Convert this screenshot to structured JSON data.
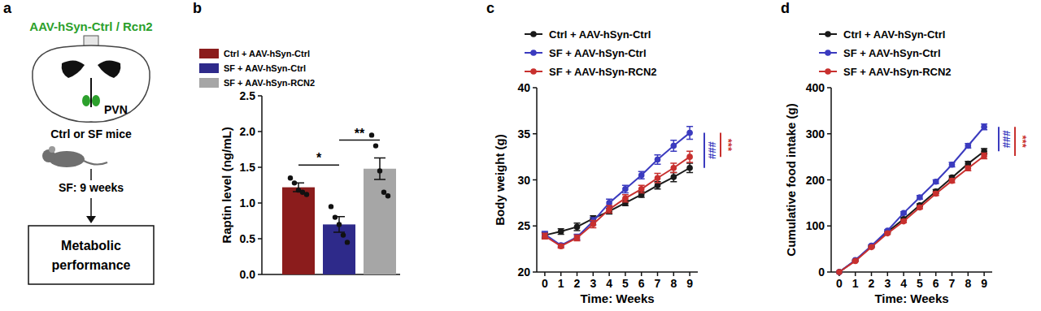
{
  "diagram": {
    "label": "a",
    "title": "AAV-hSyn-Ctrl / Rcn2",
    "region": "PVN",
    "groups": "Ctrl or SF mice",
    "treatment": "SF: 9 weeks",
    "outcome": "Metabolic performance"
  },
  "chart_data": [
    {
      "type": "bar",
      "label": "b",
      "ylabel": "Raptin level (ng/mL)",
      "categories": [
        "Ctrl + AAV-hSyn-Ctrl",
        "SF + AAV-hSyn-Ctrl",
        "SF + AAV-hSyn-RCN2"
      ],
      "values": [
        1.22,
        0.7,
        1.48
      ],
      "errors": [
        0.06,
        0.11,
        0.15
      ],
      "points": [
        [
          1.35,
          1.28,
          1.18,
          1.15,
          1.12
        ],
        [
          0.95,
          0.8,
          0.7,
          0.55,
          0.45
        ],
        [
          1.95,
          1.8,
          1.45,
          1.15,
          1.1
        ]
      ],
      "colors": [
        "#8b1c1c",
        "#2e2a8a",
        "#a6a6a6"
      ],
      "ylim": [
        0,
        2.5
      ],
      "yticks": [
        {
          "value": 0,
          "label": "0.0"
        },
        0.5,
        {
          "value": 1,
          "label": "1.0"
        },
        1.5,
        {
          "value": 2,
          "label": "2.0"
        },
        2.5
      ],
      "grid": false,
      "legend": "upper left",
      "tick_labels": "y",
      "annotations": [
        {
          "text": "*",
          "between": [
            "Ctrl + AAV-hSyn-Ctrl",
            "SF + AAV-hSyn-Ctrl"
          ]
        },
        {
          "text": "**",
          "between": [
            "SF + AAV-hSyn-Ctrl",
            "SF + AAV-hSyn-RCN2"
          ]
        }
      ]
    },
    {
      "type": "line",
      "label": "c",
      "xlabel": "Time: Weeks",
      "ylabel": "Body weight (g)",
      "x": [
        0,
        1,
        2,
        3,
        4,
        5,
        6,
        7,
        8,
        9
      ],
      "series": [
        {
          "name": "Ctrl + AAV-hSyn-Ctrl",
          "color": "#1a1a1a",
          "marker": "circle",
          "values": [
            24.0,
            24.4,
            24.9,
            25.8,
            26.6,
            27.5,
            28.4,
            29.4,
            30.3,
            31.3
          ],
          "errors": [
            0.3,
            0.3,
            0.4,
            0.3,
            0.3,
            0.3,
            0.3,
            0.4,
            0.5,
            0.5
          ]
        },
        {
          "name": "SF + AAV-hSyn-Ctrl",
          "color": "#3b3bbf",
          "marker": "circle",
          "values": [
            24.1,
            22.9,
            23.8,
            25.5,
            27.5,
            29.0,
            30.5,
            32.2,
            33.7,
            35.1
          ],
          "errors": [
            0.3,
            0.2,
            0.3,
            0.4,
            0.4,
            0.4,
            0.4,
            0.5,
            0.6,
            0.7
          ]
        },
        {
          "name": "SF + AAV-hSyn-RCN2",
          "color": "#c8302e",
          "marker": "circle",
          "values": [
            23.9,
            22.8,
            23.7,
            25.2,
            26.8,
            28.0,
            29.0,
            30.2,
            31.3,
            32.5
          ],
          "errors": [
            0.3,
            0.2,
            0.3,
            0.4,
            0.4,
            0.4,
            0.4,
            0.5,
            0.5,
            0.6
          ]
        }
      ],
      "xlim": [
        -0.5,
        9.5
      ],
      "xticks": [
        0,
        1,
        2,
        3,
        4,
        5,
        6,
        7,
        8,
        9
      ],
      "ylim": [
        20,
        40
      ],
      "yticks": [
        20,
        25,
        30,
        35,
        40
      ],
      "grid": false,
      "legend": "upper left",
      "annotations": [
        {
          "text": "###",
          "color": "#3b3bbf",
          "between": [
            "SF + AAV-hSyn-Ctrl",
            "Ctrl + AAV-hSyn-Ctrl"
          ]
        },
        {
          "text": "***",
          "color": "#c8302e",
          "between": [
            "SF + AAV-hSyn-Ctrl",
            "SF + AAV-hSyn-RCN2"
          ]
        }
      ]
    },
    {
      "type": "line",
      "label": "d",
      "xlabel": "Time: Weeks",
      "ylabel": "Cumulative food intake (g)",
      "x": [
        0,
        1,
        2,
        3,
        4,
        5,
        6,
        7,
        8,
        9
      ],
      "series": [
        {
          "name": "Ctrl + AAV-hSyn-Ctrl",
          "color": "#1a1a1a",
          "marker": "circle",
          "values": [
            0,
            25,
            56,
            87,
            115,
            145,
            175,
            205,
            235,
            262
          ],
          "errors": [
            0,
            1,
            2,
            2,
            3,
            3,
            4,
            4,
            5,
            6
          ]
        },
        {
          "name": "SF + AAV-hSyn-Ctrl",
          "color": "#3b3bbf",
          "marker": "circle",
          "values": [
            0,
            26,
            57,
            90,
            128,
            162,
            196,
            233,
            274,
            315
          ],
          "errors": [
            0,
            1,
            2,
            2,
            3,
            4,
            4,
            5,
            5,
            6
          ]
        },
        {
          "name": "SF + AAV-hSyn-RCN2",
          "color": "#c8302e",
          "marker": "circle",
          "values": [
            0,
            24,
            54,
            84,
            110,
            140,
            170,
            198,
            225,
            252
          ],
          "errors": [
            0,
            1,
            2,
            2,
            3,
            3,
            4,
            4,
            5,
            6
          ]
        }
      ],
      "xlim": [
        -0.5,
        9.5
      ],
      "xticks": [
        0,
        1,
        2,
        3,
        4,
        5,
        6,
        7,
        8,
        9
      ],
      "ylim": [
        0,
        400
      ],
      "yticks": [
        0,
        100,
        200,
        300,
        400
      ],
      "grid": false,
      "legend": "upper left",
      "annotations": [
        {
          "text": "###",
          "color": "#3b3bbf",
          "between": [
            "SF + AAV-hSyn-Ctrl",
            "Ctrl + AAV-hSyn-Ctrl"
          ]
        },
        {
          "text": "***",
          "color": "#c8302e",
          "between": [
            "SF + AAV-hSyn-Ctrl",
            "SF + AAV-hSyn-RCN2"
          ]
        }
      ]
    }
  ]
}
